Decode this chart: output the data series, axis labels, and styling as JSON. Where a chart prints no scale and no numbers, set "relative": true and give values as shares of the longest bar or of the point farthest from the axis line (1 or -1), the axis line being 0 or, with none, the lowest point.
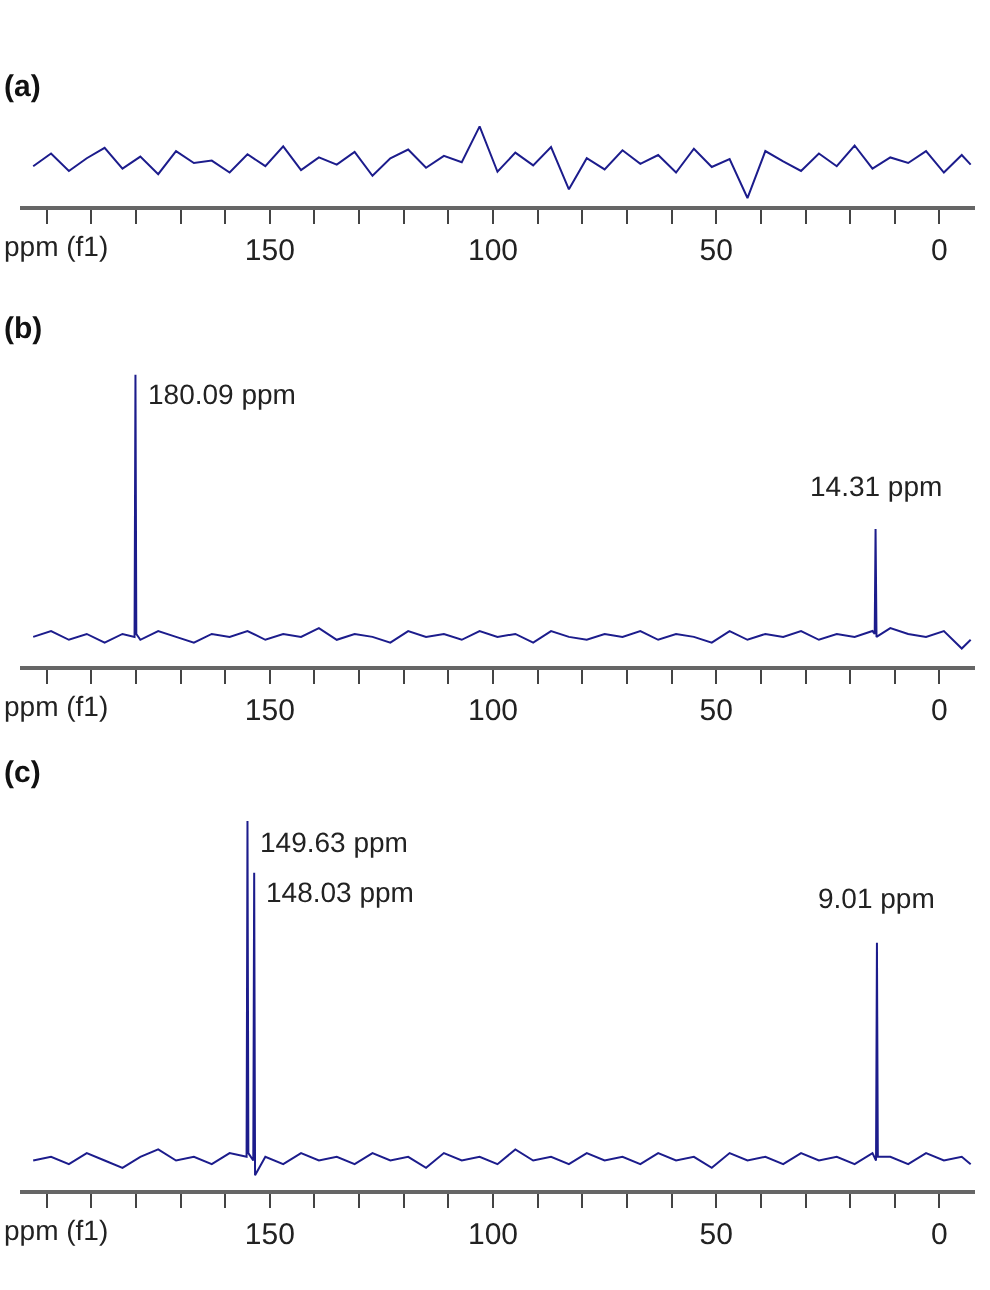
{
  "chart_data": [
    {
      "type": "line",
      "title": "(a)",
      "xlabel": "ppm (f1)",
      "relative": true,
      "marker": "none",
      "line_style": "solid",
      "tick_labels": "x",
      "xlim": [
        206,
        -8
      ],
      "xticks": [
        {
          "value": 200,
          "label": null
        },
        {
          "value": 190,
          "label": null
        },
        {
          "value": 180,
          "label": null
        },
        {
          "value": 170,
          "label": null
        },
        {
          "value": 160,
          "label": null
        },
        150,
        {
          "value": 140,
          "label": null
        },
        {
          "value": 130,
          "label": null
        },
        {
          "value": 120,
          "label": null
        },
        {
          "value": 110,
          "label": null
        },
        100,
        {
          "value": 90,
          "label": null
        },
        {
          "value": 80,
          "label": null
        },
        {
          "value": 70,
          "label": null
        },
        {
          "value": 60,
          "label": null
        },
        50,
        {
          "value": 40,
          "label": null
        },
        {
          "value": 30,
          "label": null
        },
        {
          "value": 20,
          "label": null
        },
        {
          "value": 10,
          "label": null
        },
        0
      ],
      "x": [
        203,
        199,
        195,
        191,
        187,
        183,
        179,
        175,
        171,
        167,
        163,
        159,
        155,
        151,
        147,
        143,
        139,
        135,
        131,
        127,
        123,
        119,
        115,
        111,
        107,
        103,
        99,
        95,
        91,
        87,
        83,
        79,
        75,
        71,
        67,
        63,
        59,
        55,
        51,
        47,
        43,
        39,
        35,
        31,
        27,
        23,
        19,
        15,
        11,
        7,
        3,
        -1,
        -5,
        -7
      ],
      "series": [
        {
          "color": "#1c1c8c",
          "values": [
            0.5,
            0.66,
            0.44,
            0.6,
            0.73,
            0.47,
            0.62,
            0.4,
            0.69,
            0.54,
            0.57,
            0.42,
            0.65,
            0.5,
            0.75,
            0.45,
            0.61,
            0.52,
            0.68,
            0.38,
            0.6,
            0.71,
            0.48,
            0.63,
            0.55,
            1.0,
            0.43,
            0.67,
            0.51,
            0.74,
            0.21,
            0.6,
            0.46,
            0.7,
            0.53,
            0.64,
            0.42,
            0.72,
            0.49,
            0.59,
            0.1,
            0.69,
            0.56,
            0.44,
            0.66,
            0.5,
            0.76,
            0.47,
            0.61,
            0.54,
            0.69,
            0.42,
            0.64,
            0.52
          ]
        }
      ]
    },
    {
      "type": "line",
      "title": "(b)",
      "xlabel": "ppm (f1)",
      "relative": true,
      "marker": "none",
      "line_style": "solid",
      "tick_labels": "x",
      "xlim": [
        206,
        -8
      ],
      "xticks": [
        {
          "value": 200,
          "label": null
        },
        {
          "value": 190,
          "label": null
        },
        {
          "value": 180,
          "label": null
        },
        {
          "value": 170,
          "label": null
        },
        {
          "value": 160,
          "label": null
        },
        150,
        {
          "value": 140,
          "label": null
        },
        {
          "value": 130,
          "label": null
        },
        {
          "value": 120,
          "label": null
        },
        {
          "value": 110,
          "label": null
        },
        100,
        {
          "value": 90,
          "label": null
        },
        {
          "value": 80,
          "label": null
        },
        {
          "value": 70,
          "label": null
        },
        {
          "value": 60,
          "label": null
        },
        50,
        {
          "value": 40,
          "label": null
        },
        {
          "value": 30,
          "label": null
        },
        {
          "value": 20,
          "label": null
        },
        {
          "value": 10,
          "label": null
        },
        0
      ],
      "x": [
        203,
        199,
        195,
        191,
        187,
        183,
        180.3,
        180.09,
        179.9,
        179,
        175,
        171,
        167,
        163,
        159,
        155,
        151,
        147,
        143,
        139,
        135,
        131,
        127,
        123,
        119,
        115,
        111,
        107,
        103,
        99,
        95,
        91,
        87,
        83,
        79,
        75,
        71,
        67,
        63,
        59,
        55,
        51,
        47,
        43,
        39,
        35,
        31,
        27,
        23,
        19,
        15,
        14.5,
        14.31,
        14.1,
        11,
        7,
        3,
        -1,
        -5,
        -7
      ],
      "series": [
        {
          "color": "#1c1c8c",
          "values": [
            0.1,
            0.12,
            0.09,
            0.11,
            0.08,
            0.11,
            0.1,
            1.0,
            0.11,
            0.09,
            0.12,
            0.1,
            0.08,
            0.11,
            0.1,
            0.12,
            0.09,
            0.11,
            0.1,
            0.13,
            0.09,
            0.11,
            0.1,
            0.08,
            0.12,
            0.1,
            0.11,
            0.09,
            0.12,
            0.1,
            0.11,
            0.08,
            0.12,
            0.1,
            0.09,
            0.11,
            0.1,
            0.12,
            0.09,
            0.11,
            0.1,
            0.08,
            0.12,
            0.09,
            0.11,
            0.1,
            0.12,
            0.09,
            0.11,
            0.1,
            0.12,
            0.11,
            0.47,
            0.1,
            0.13,
            0.11,
            0.1,
            0.12,
            0.06,
            0.09
          ]
        }
      ],
      "annotations": [
        {
          "text": "180.09 ppm",
          "x": 180.09,
          "y": 1.0
        },
        {
          "text": "14.31 ppm",
          "x": 14.31,
          "y": 0.47
        }
      ]
    },
    {
      "type": "line",
      "title": "(c)",
      "xlabel": "ppm (f1)",
      "relative": true,
      "marker": "none",
      "line_style": "solid",
      "tick_labels": "x",
      "xlim": [
        206,
        -8
      ],
      "xticks": [
        {
          "value": 200,
          "label": null
        },
        {
          "value": 190,
          "label": null
        },
        {
          "value": 180,
          "label": null
        },
        {
          "value": 170,
          "label": null
        },
        {
          "value": 160,
          "label": null
        },
        150,
        {
          "value": 140,
          "label": null
        },
        {
          "value": 130,
          "label": null
        },
        {
          "value": 120,
          "label": null
        },
        {
          "value": 110,
          "label": null
        },
        100,
        {
          "value": 90,
          "label": null
        },
        {
          "value": 80,
          "label": null
        },
        {
          "value": 70,
          "label": null
        },
        {
          "value": 60,
          "label": null
        },
        50,
        {
          "value": 40,
          "label": null
        },
        {
          "value": 30,
          "label": null
        },
        {
          "value": 20,
          "label": null
        },
        {
          "value": 10,
          "label": null
        },
        0
      ],
      "x": [
        203,
        199,
        195,
        191,
        187,
        183,
        179,
        175,
        171,
        167,
        163,
        159,
        155.2,
        155.0,
        154.8,
        153.7,
        153.5,
        153.3,
        151,
        147,
        143,
        139,
        135,
        131,
        127,
        123,
        119,
        115,
        111,
        107,
        103,
        99,
        95,
        91,
        87,
        83,
        79,
        75,
        71,
        67,
        63,
        59,
        55,
        51,
        47,
        43,
        39,
        35,
        31,
        27,
        23,
        19,
        15,
        14.2,
        14.0,
        13.8,
        11,
        7,
        3,
        -1,
        -5,
        -7
      ],
      "series": [
        {
          "color": "#1c1c8c",
          "values": [
            0.08,
            0.09,
            0.07,
            0.1,
            0.08,
            0.06,
            0.09,
            0.11,
            0.08,
            0.09,
            0.07,
            0.1,
            0.09,
            1.0,
            0.1,
            0.08,
            0.86,
            0.04,
            0.09,
            0.07,
            0.1,
            0.08,
            0.09,
            0.07,
            0.1,
            0.08,
            0.09,
            0.06,
            0.1,
            0.08,
            0.09,
            0.07,
            0.11,
            0.08,
            0.09,
            0.07,
            0.1,
            0.08,
            0.09,
            0.07,
            0.1,
            0.08,
            0.09,
            0.06,
            0.1,
            0.08,
            0.09,
            0.07,
            0.1,
            0.08,
            0.09,
            0.07,
            0.1,
            0.08,
            0.67,
            0.09,
            0.09,
            0.07,
            0.1,
            0.08,
            0.09,
            0.07
          ]
        }
      ],
      "annotations": [
        {
          "text": "149.63 ppm",
          "x": 155.0,
          "y": 1.0
        },
        {
          "text": "148.03 ppm",
          "x": 153.5,
          "y": 0.86
        },
        {
          "text": "9.01 ppm",
          "x": 14.0,
          "y": 0.67
        }
      ]
    }
  ]
}
